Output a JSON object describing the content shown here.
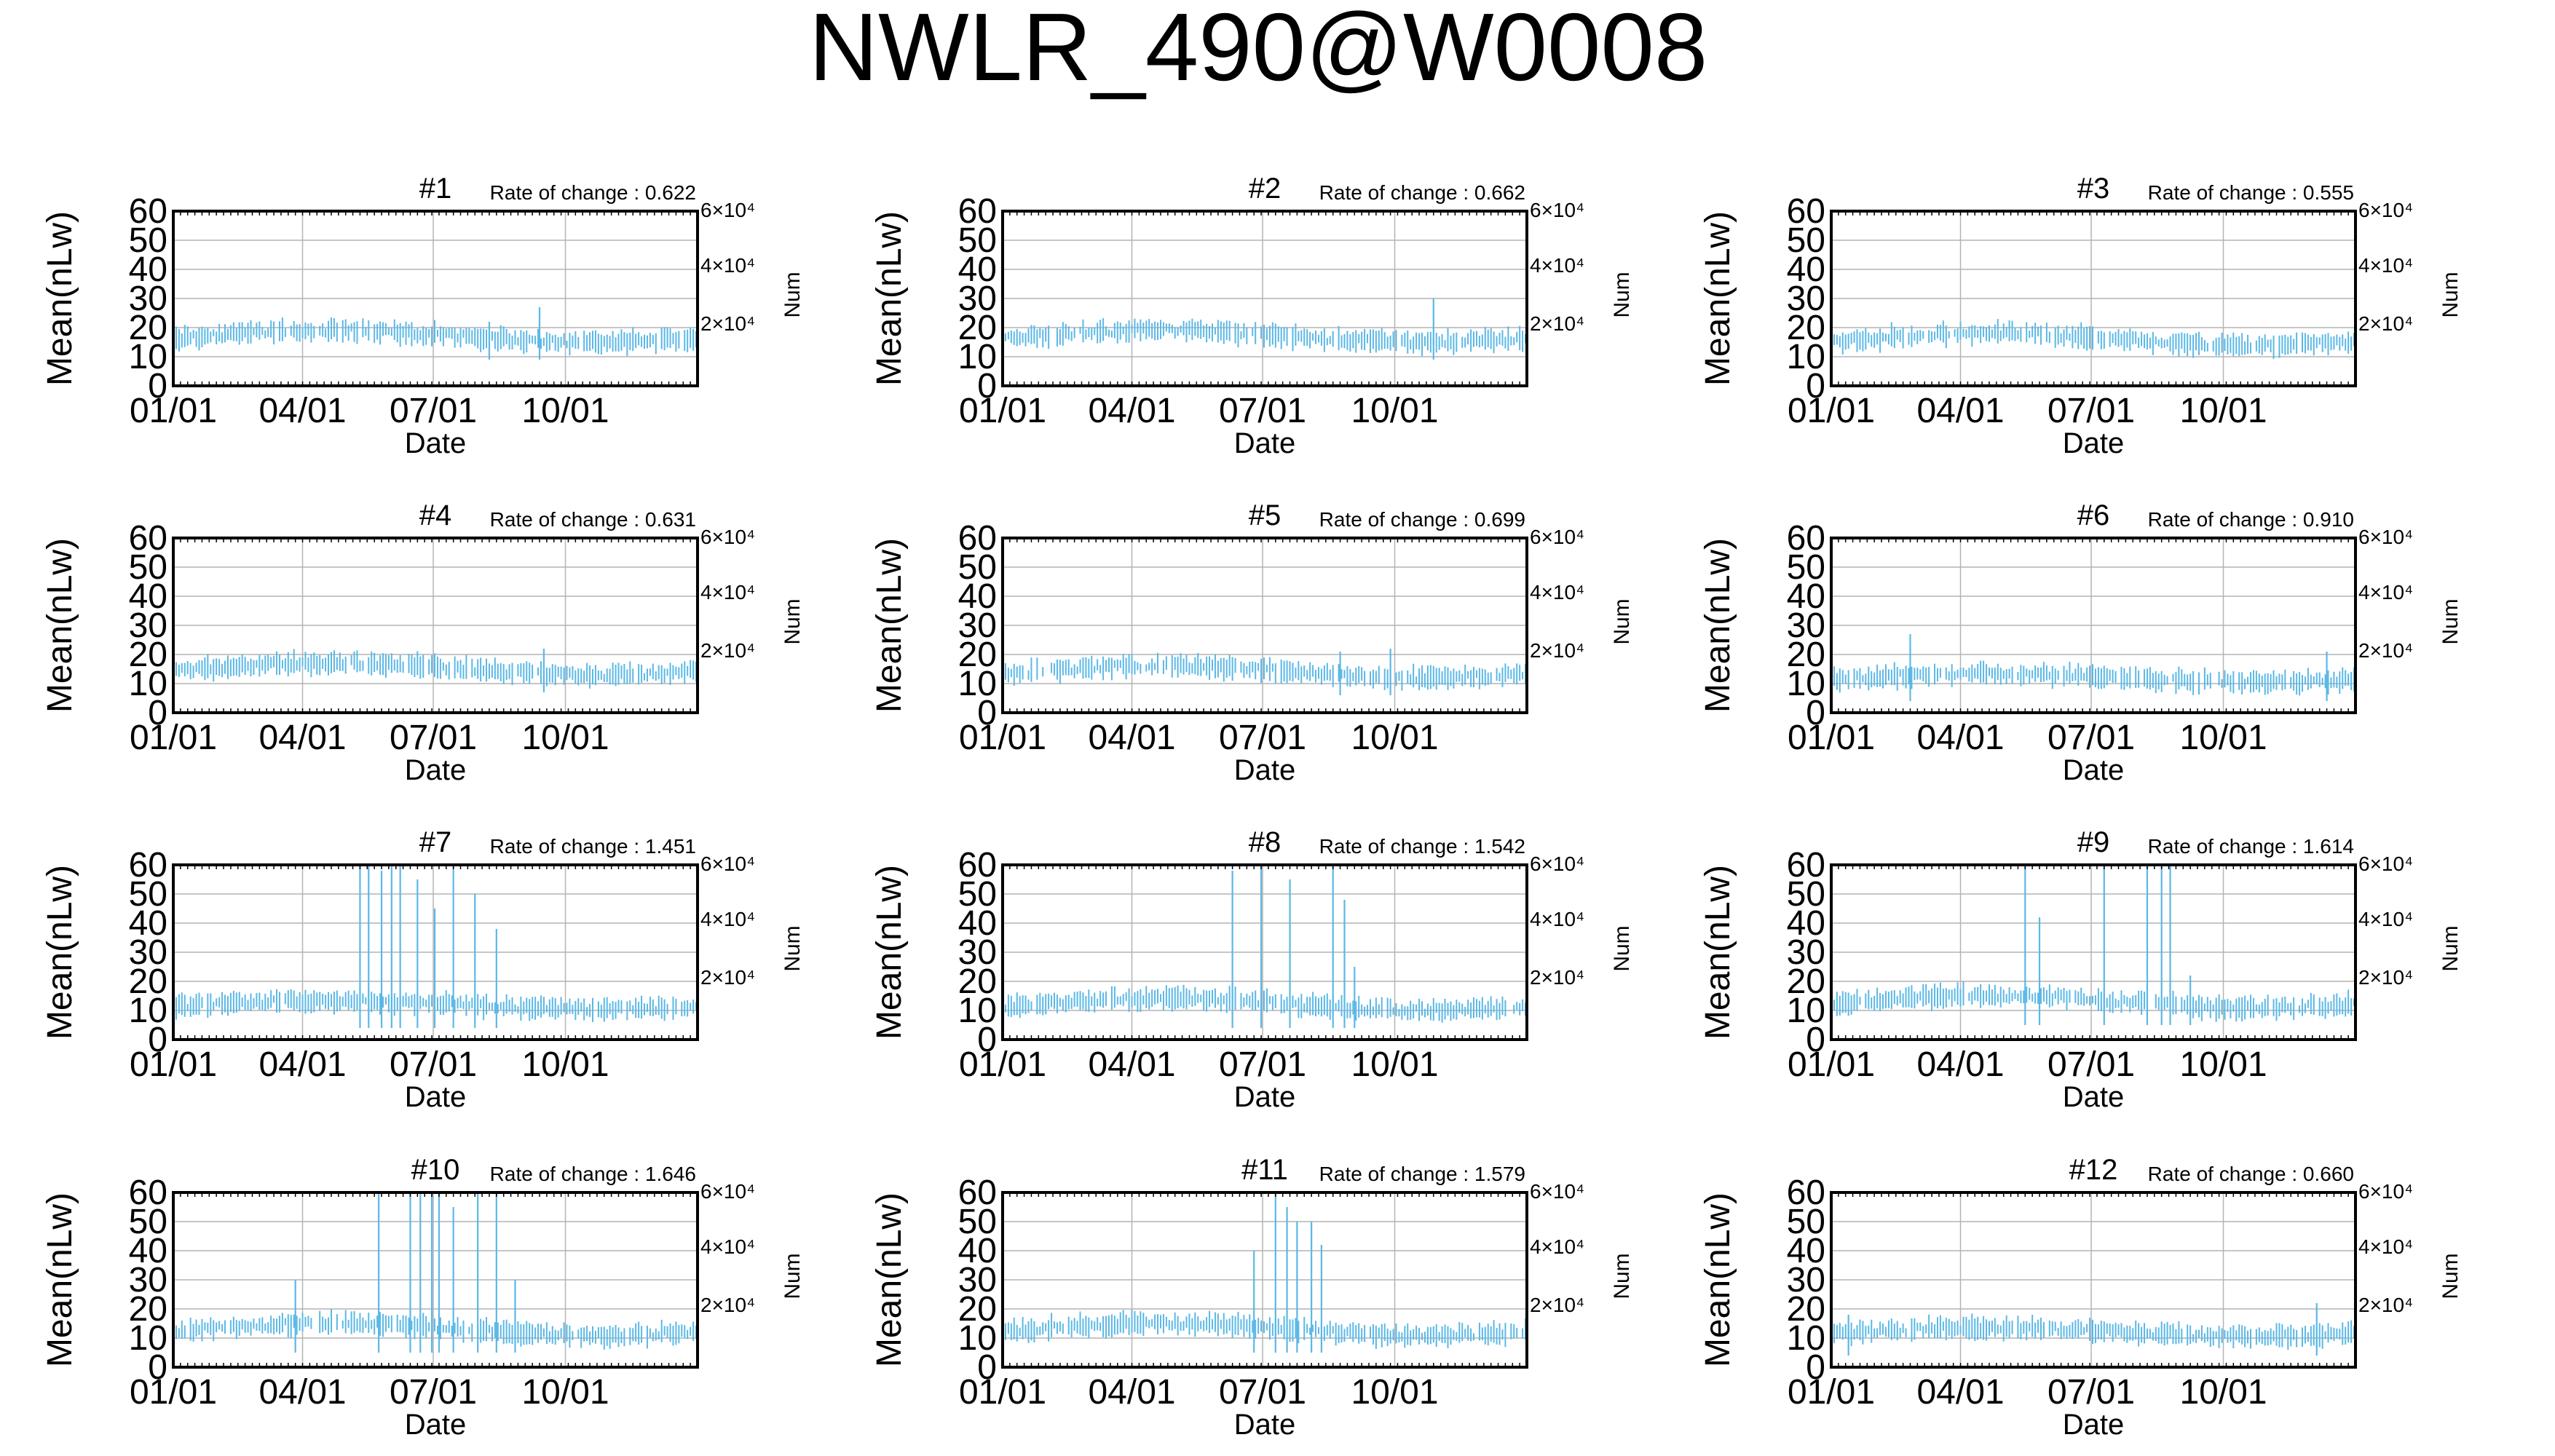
{
  "title": "NWLR_490@W0008",
  "colors": {
    "series": "#5bb8e6",
    "axis": "#000000",
    "grid": "#b4b4b4"
  },
  "axes": {
    "xlabel": "Date",
    "ylabel": "Mean(nLw)",
    "y2label": "Num",
    "xticks": [
      "01/01",
      "04/01",
      "07/01",
      "10/01"
    ],
    "xtick_days": [
      0,
      90,
      181,
      273
    ],
    "x_range_days": [
      0,
      365
    ],
    "yticks": [
      "0",
      "10",
      "20",
      "30",
      "40",
      "50",
      "60"
    ],
    "ylim": [
      0,
      60
    ],
    "y2ticks": [
      "2×10⁴",
      "4×10⁴",
      "6×10⁴"
    ],
    "grid": true
  },
  "chart_data": [
    {
      "type": "errorbar",
      "panel": "#1",
      "rate_label": "Rate of change : 0.622",
      "level": 17,
      "amp": 3,
      "spikes": [
        {
          "day": 255,
          "top": 27
        },
        {
          "day": 220,
          "top": 22
        }
      ]
    },
    {
      "type": "errorbar",
      "panel": "#2",
      "rate_label": "Rate of change : 0.662",
      "level": 17,
      "amp": 3,
      "spikes": [
        {
          "day": 300,
          "top": 30
        }
      ]
    },
    {
      "type": "errorbar",
      "panel": "#3",
      "rate_label": "Rate of change : 0.555",
      "level": 16,
      "amp": 3,
      "spikes": []
    },
    {
      "type": "errorbar",
      "panel": "#4",
      "rate_label": "Rate of change : 0.631",
      "level": 15,
      "amp": 3,
      "spikes": [
        {
          "day": 258,
          "top": 22
        }
      ]
    },
    {
      "type": "errorbar",
      "panel": "#5",
      "rate_label": "Rate of change : 0.699",
      "level": 14,
      "amp": 3,
      "spikes": [
        {
          "day": 235,
          "top": 21
        },
        {
          "day": 270,
          "top": 22
        }
      ]
    },
    {
      "type": "errorbar",
      "panel": "#6",
      "rate_label": "Rate of change : 0.910",
      "level": 12,
      "amp": 2,
      "spikes": [
        {
          "day": 55,
          "top": 27
        },
        {
          "day": 345,
          "top": 21
        }
      ]
    },
    {
      "type": "errorbar",
      "panel": "#7",
      "rate_label": "Rate of change : 1.451",
      "level": 12,
      "amp": 2,
      "spikes": [
        {
          "day": 130,
          "top": 60
        },
        {
          "day": 136,
          "top": 60
        },
        {
          "day": 145,
          "top": 58
        },
        {
          "day": 152,
          "top": 60
        },
        {
          "day": 158,
          "top": 60
        },
        {
          "day": 170,
          "top": 55
        },
        {
          "day": 182,
          "top": 45
        },
        {
          "day": 195,
          "top": 60
        },
        {
          "day": 210,
          "top": 50
        },
        {
          "day": 225,
          "top": 38
        }
      ]
    },
    {
      "type": "errorbar",
      "panel": "#8",
      "rate_label": "Rate of change : 1.542",
      "level": 12,
      "amp": 3,
      "spikes": [
        {
          "day": 160,
          "top": 58
        },
        {
          "day": 180,
          "top": 60
        },
        {
          "day": 200,
          "top": 55
        },
        {
          "day": 230,
          "top": 60
        },
        {
          "day": 238,
          "top": 48
        },
        {
          "day": 245,
          "top": 25
        }
      ]
    },
    {
      "type": "errorbar",
      "panel": "#9",
      "rate_label": "Rate of change : 1.614",
      "level": 13,
      "amp": 3,
      "spikes": [
        {
          "day": 135,
          "top": 60
        },
        {
          "day": 145,
          "top": 42
        },
        {
          "day": 190,
          "top": 60
        },
        {
          "day": 220,
          "top": 60
        },
        {
          "day": 230,
          "top": 60
        },
        {
          "day": 236,
          "top": 60
        },
        {
          "day": 250,
          "top": 22
        }
      ]
    },
    {
      "type": "errorbar",
      "panel": "#10",
      "rate_label": "Rate of change : 1.646",
      "level": 13,
      "amp": 3,
      "spikes": [
        {
          "day": 85,
          "top": 30
        },
        {
          "day": 143,
          "top": 60
        },
        {
          "day": 165,
          "top": 60
        },
        {
          "day": 172,
          "top": 60
        },
        {
          "day": 180,
          "top": 60
        },
        {
          "day": 185,
          "top": 60
        },
        {
          "day": 195,
          "top": 55
        },
        {
          "day": 212,
          "top": 60
        },
        {
          "day": 225,
          "top": 60
        },
        {
          "day": 238,
          "top": 30
        }
      ]
    },
    {
      "type": "errorbar",
      "panel": "#11",
      "rate_label": "Rate of change : 1.579",
      "level": 13,
      "amp": 3,
      "spikes": [
        {
          "day": 175,
          "top": 40
        },
        {
          "day": 190,
          "top": 60
        },
        {
          "day": 198,
          "top": 55
        },
        {
          "day": 205,
          "top": 50
        },
        {
          "day": 215,
          "top": 50
        },
        {
          "day": 222,
          "top": 42
        }
      ]
    },
    {
      "type": "errorbar",
      "panel": "#12",
      "rate_label": "Rate of change : 0.660",
      "level": 12,
      "amp": 2,
      "spikes": [
        {
          "day": 12,
          "top": 18
        },
        {
          "day": 338,
          "top": 22
        }
      ]
    }
  ]
}
